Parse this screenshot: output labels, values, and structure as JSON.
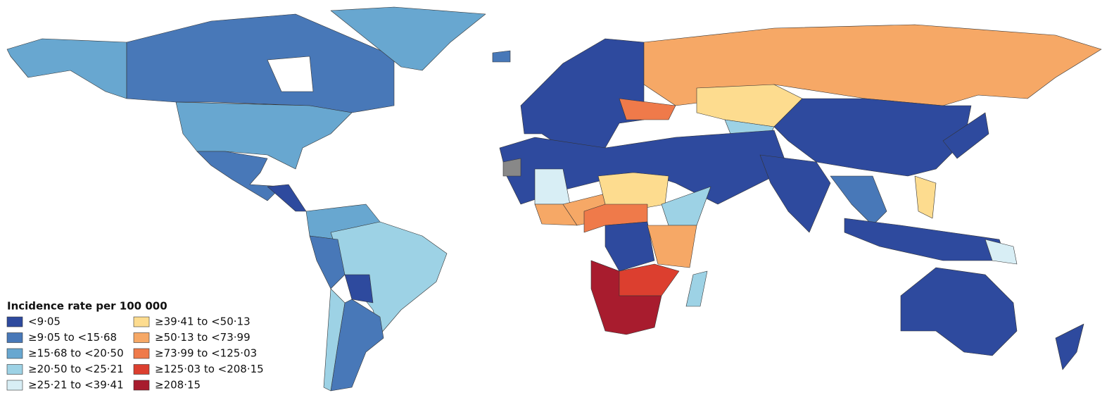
{
  "legend": {
    "title": "Incidence rate per 100 000",
    "items": [
      {
        "label": "<9·05",
        "color": "#2e4a9e"
      },
      {
        "label": "≥9·05 to <15·68",
        "color": "#4878b8"
      },
      {
        "label": "≥15·68 to <20·50",
        "color": "#68a7d0"
      },
      {
        "label": "≥20·50 to <25·21",
        "color": "#9dd2e5"
      },
      {
        "label": "≥25·21 to <39·41",
        "color": "#d8eef5"
      },
      {
        "label": "≥39·41 to <50·13",
        "color": "#fddc8f"
      },
      {
        "label": "≥50·13 to <73·99",
        "color": "#f6a866"
      },
      {
        "label": "≥73·99 to <125·03",
        "color": "#ef7a4a"
      },
      {
        "label": "≥125·03 to <208·15",
        "color": "#dc3f2f"
      },
      {
        "label": "≥208·15",
        "color": "#a81c2e"
      }
    ]
  }
}
